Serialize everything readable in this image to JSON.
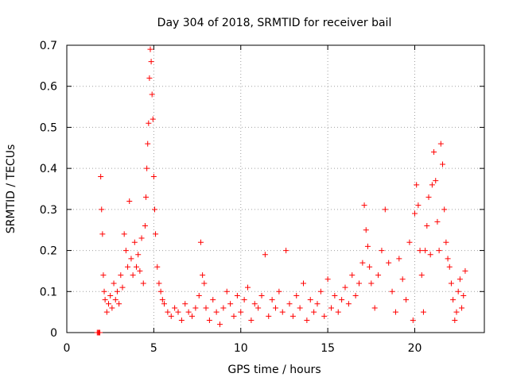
{
  "chart_data": {
    "type": "scatter",
    "title": "Day 304 of 2018, SRMTID for receiver bail",
    "xlabel": "GPS time / hours",
    "ylabel": "SRMTID / TECUs",
    "xlim": [
      0,
      24
    ],
    "ylim": [
      0,
      0.7
    ],
    "x_ticks": [
      "0",
      "5",
      "10",
      "15",
      "20"
    ],
    "y_ticks": [
      "0",
      "0.1",
      "0.2",
      "0.3",
      "0.4",
      "0.5",
      "0.6",
      "0.7"
    ],
    "grid": true,
    "marker": "plus",
    "series": [
      {
        "name": "SRMTID",
        "color": "#ff0000",
        "x": [
          1.75,
          1.8,
          1.85,
          1.9,
          1.95,
          2.0,
          2.05,
          2.1,
          2.15,
          2.2,
          2.3,
          2.4,
          2.5,
          2.6,
          2.7,
          2.8,
          2.9,
          3.0,
          3.1,
          3.2,
          3.3,
          3.4,
          3.5,
          3.6,
          3.7,
          3.8,
          3.9,
          4.0,
          4.1,
          4.2,
          4.3,
          4.4,
          4.5,
          4.55,
          4.6,
          4.65,
          4.7,
          4.75,
          4.8,
          4.85,
          4.9,
          4.95,
          5.0,
          5.05,
          5.1,
          5.2,
          5.3,
          5.4,
          5.5,
          5.6,
          5.8,
          6.0,
          6.2,
          6.4,
          6.6,
          6.8,
          7.0,
          7.2,
          7.4,
          7.6,
          7.7,
          7.8,
          7.9,
          8.0,
          8.2,
          8.4,
          8.6,
          8.8,
          9.0,
          9.2,
          9.4,
          9.6,
          9.8,
          10.0,
          10.2,
          10.4,
          10.6,
          10.8,
          11.0,
          11.2,
          11.4,
          11.6,
          11.8,
          12.0,
          12.2,
          12.4,
          12.6,
          12.8,
          13.0,
          13.2,
          13.4,
          13.6,
          13.8,
          14.0,
          14.2,
          14.4,
          14.6,
          14.8,
          15.0,
          15.2,
          15.4,
          15.6,
          15.8,
          16.0,
          16.2,
          16.4,
          16.6,
          16.8,
          17.0,
          17.1,
          17.2,
          17.3,
          17.4,
          17.5,
          17.7,
          17.9,
          18.1,
          18.3,
          18.5,
          18.7,
          18.9,
          19.1,
          19.3,
          19.5,
          19.7,
          19.9,
          20.0,
          20.1,
          20.2,
          20.3,
          20.4,
          20.5,
          20.6,
          20.7,
          20.8,
          20.9,
          21.0,
          21.1,
          21.2,
          21.3,
          21.4,
          21.5,
          21.6,
          21.7,
          21.8,
          21.9,
          22.0,
          22.1,
          22.2,
          22.3,
          22.4,
          22.5,
          22.6,
          22.7,
          22.8,
          22.9
        ],
        "y": [
          0.0,
          0.0,
          0.0,
          0.0,
          0.38,
          0.3,
          0.24,
          0.14,
          0.1,
          0.08,
          0.05,
          0.07,
          0.09,
          0.06,
          0.12,
          0.08,
          0.1,
          0.07,
          0.14,
          0.11,
          0.24,
          0.2,
          0.16,
          0.32,
          0.18,
          0.14,
          0.22,
          0.16,
          0.19,
          0.15,
          0.23,
          0.12,
          0.26,
          0.33,
          0.4,
          0.46,
          0.51,
          0.62,
          0.69,
          0.66,
          0.58,
          0.52,
          0.38,
          0.3,
          0.24,
          0.16,
          0.12,
          0.1,
          0.08,
          0.07,
          0.05,
          0.04,
          0.06,
          0.05,
          0.03,
          0.07,
          0.05,
          0.04,
          0.06,
          0.09,
          0.22,
          0.14,
          0.12,
          0.06,
          0.03,
          0.08,
          0.05,
          0.02,
          0.06,
          0.1,
          0.07,
          0.04,
          0.09,
          0.05,
          0.08,
          0.11,
          0.03,
          0.07,
          0.06,
          0.09,
          0.19,
          0.04,
          0.08,
          0.06,
          0.1,
          0.05,
          0.2,
          0.07,
          0.04,
          0.09,
          0.06,
          0.12,
          0.03,
          0.08,
          0.05,
          0.07,
          0.1,
          0.04,
          0.13,
          0.06,
          0.09,
          0.05,
          0.08,
          0.11,
          0.07,
          0.14,
          0.09,
          0.12,
          0.17,
          0.31,
          0.25,
          0.21,
          0.16,
          0.12,
          0.06,
          0.14,
          0.2,
          0.3,
          0.17,
          0.1,
          0.05,
          0.18,
          0.13,
          0.08,
          0.22,
          0.03,
          0.29,
          0.36,
          0.31,
          0.2,
          0.14,
          0.05,
          0.2,
          0.26,
          0.33,
          0.19,
          0.36,
          0.44,
          0.37,
          0.27,
          0.2,
          0.46,
          0.41,
          0.3,
          0.22,
          0.18,
          0.16,
          0.12,
          0.08,
          0.03,
          0.05,
          0.1,
          0.13,
          0.06,
          0.09,
          0.15
        ]
      }
    ]
  }
}
